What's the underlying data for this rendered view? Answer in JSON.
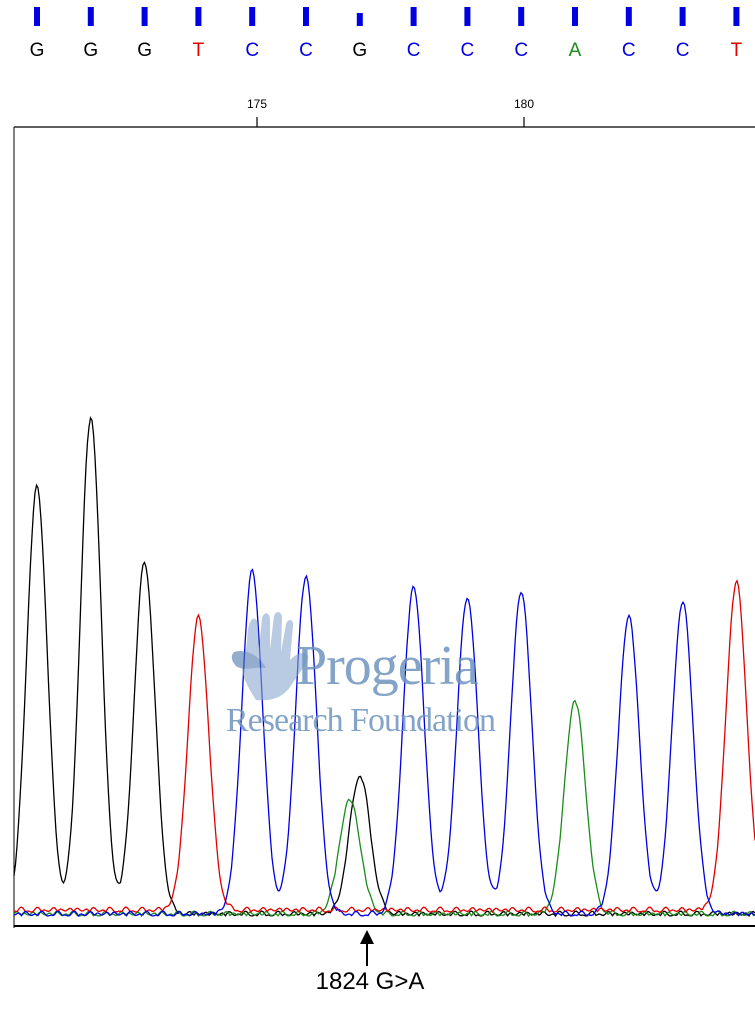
{
  "chart_data": {
    "type": "line",
    "title": "",
    "bases": [
      "G",
      "G",
      "G",
      "T",
      "C",
      "C",
      "G",
      "C",
      "C",
      "C",
      "A",
      "C",
      "C",
      "T"
    ],
    "base_colors": {
      "G": "#000000",
      "A": "#1a8c1a",
      "T": "#e00000",
      "C": "#0000e0"
    },
    "base_tick_marks": [
      true,
      true,
      true,
      true,
      true,
      true,
      true,
      true,
      true,
      true,
      true,
      true,
      true,
      true
    ],
    "position_ticks": [
      {
        "label": "175",
        "position": 175
      },
      {
        "label": "180",
        "position": 180
      }
    ],
    "series": [
      {
        "name": "G",
        "color": "#000000",
        "peaks": [
          {
            "base_index": 0,
            "height": 0.86
          },
          {
            "base_index": 1,
            "height": 1.0
          },
          {
            "base_index": 2,
            "height": 0.71
          },
          {
            "base_index": 6,
            "height": 0.28
          }
        ]
      },
      {
        "name": "A",
        "color": "#1a8c1a",
        "peaks": [
          {
            "base_index": 6,
            "height": 0.23
          },
          {
            "base_index": 10,
            "height": 0.43
          }
        ]
      },
      {
        "name": "T",
        "color": "#e00000",
        "peaks": [
          {
            "base_index": 3,
            "height": 0.59
          },
          {
            "base_index": 13,
            "height": 0.66
          }
        ]
      },
      {
        "name": "C",
        "color": "#0000e0",
        "peaks": [
          {
            "base_index": 4,
            "height": 0.69
          },
          {
            "base_index": 5,
            "height": 0.68
          },
          {
            "base_index": 7,
            "height": 0.66
          },
          {
            "base_index": 8,
            "height": 0.64
          },
          {
            "base_index": 9,
            "height": 0.65
          },
          {
            "base_index": 11,
            "height": 0.6
          },
          {
            "base_index": 12,
            "height": 0.63
          }
        ]
      }
    ],
    "annotation": {
      "label": "1824 G>A",
      "base_index": 6
    }
  },
  "watermark": {
    "line1": "Progeria",
    "line2": "Research Foundation",
    "color": "#6f94bf"
  }
}
